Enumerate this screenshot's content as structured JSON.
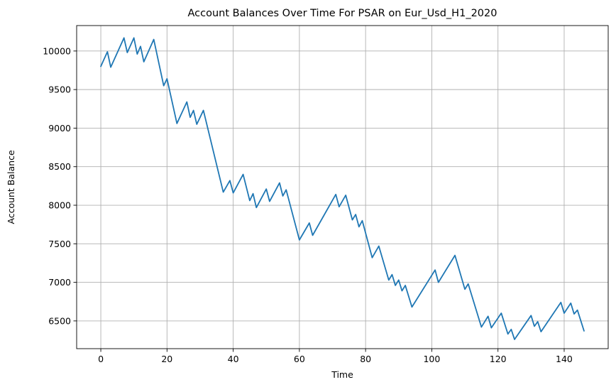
{
  "chart_data": {
    "type": "line",
    "title": "Account Balances Over Time For PSAR on Eur_Usd_H1_2020",
    "xlabel": "Time",
    "ylabel": "Account Balance",
    "xlim": [
      -7.3,
      153.3
    ],
    "ylim": [
      6140,
      10330
    ],
    "xticks": [
      0,
      20,
      40,
      60,
      80,
      100,
      120,
      140
    ],
    "yticks": [
      6500,
      7000,
      7500,
      8000,
      8500,
      9000,
      9500,
      10000
    ],
    "grid": true,
    "series": [
      {
        "color": "#1f77b4",
        "x": [
          0,
          2,
          3,
          7,
          8,
          10,
          11,
          12,
          13,
          16,
          19,
          20,
          23,
          26,
          27,
          28,
          29,
          31,
          37,
          39,
          40,
          43,
          45,
          46,
          47,
          50,
          51,
          54,
          55,
          56,
          60,
          63,
          64,
          71,
          72,
          74,
          76,
          77,
          78,
          79,
          82,
          84,
          87,
          88,
          89,
          90,
          91,
          92,
          94,
          101,
          102,
          107,
          110,
          111,
          115,
          117,
          118,
          121,
          123,
          124,
          125,
          130,
          131,
          132,
          133,
          139,
          140,
          142,
          143,
          144,
          146
        ],
        "y": [
          9800,
          9990,
          9790,
          10170,
          9980,
          10170,
          9960,
          10060,
          9860,
          10150,
          9550,
          9640,
          9060,
          9340,
          9140,
          9230,
          9050,
          9230,
          8170,
          8320,
          8160,
          8400,
          8060,
          8150,
          7970,
          8210,
          8050,
          8290,
          8120,
          8200,
          7550,
          7770,
          7610,
          8140,
          7980,
          8130,
          7810,
          7880,
          7720,
          7800,
          7320,
          7470,
          7030,
          7100,
          6960,
          7030,
          6890,
          6960,
          6680,
          7160,
          7000,
          7350,
          6910,
          6980,
          6420,
          6560,
          6410,
          6600,
          6330,
          6390,
          6260,
          6570,
          6430,
          6490,
          6360,
          6740,
          6600,
          6730,
          6590,
          6640,
          6370
        ]
      }
    ]
  }
}
